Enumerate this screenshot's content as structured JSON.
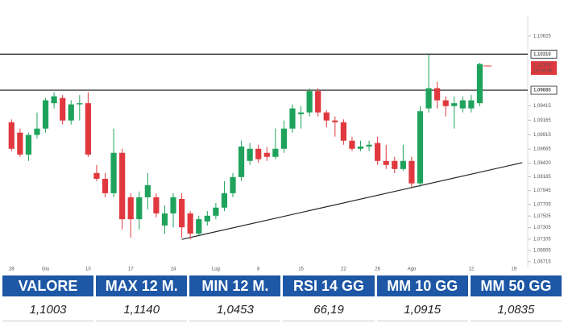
{
  "chart_data": {
    "type": "candlestick",
    "categories": [
      "28",
      null,
      null,
      null,
      "Giu",
      null,
      null,
      null,
      null,
      "10",
      null,
      null,
      null,
      null,
      "17",
      null,
      null,
      null,
      null,
      "24",
      null,
      null,
      null,
      null,
      "Lug",
      null,
      null,
      null,
      null,
      "8",
      null,
      null,
      null,
      null,
      "15",
      null,
      null,
      null,
      null,
      "22",
      null,
      null,
      null,
      "26",
      null,
      null,
      null,
      "Ago",
      null,
      null,
      null,
      null,
      null,
      null,
      "12",
      null,
      null,
      null,
      null,
      "19"
    ],
    "open": [
      1.0913,
      1.0895,
      1.0857,
      1.0891,
      1.0902,
      1.0946,
      1.0955,
      1.0916,
      1.0944,
      1.0946,
      1.0825,
      1.0815,
      1.079,
      1.086,
      1.0783,
      1.0745,
      1.0783,
      1.0783,
      1.0734,
      1.0755,
      1.078,
      1.0755,
      1.072,
      1.0741,
      1.0751,
      1.0765,
      1.079,
      1.0818,
      1.0846,
      1.0867,
      1.086,
      1.0853,
      1.0867,
      1.0902,
      1.0927,
      1.093,
      1.0967,
      1.093,
      1.0916,
      1.0913,
      1.0881,
      1.0867,
      1.0871,
      1.0877,
      1.0846,
      1.0846,
      1.0832,
      1.0846,
      1.0807,
      1.0937,
      1.0972,
      1.0951,
      1.0941,
      1.0937,
      1.0937,
      1.0946,
      null,
      null,
      null,
      null
    ],
    "high": [
      1.0918,
      1.0902,
      1.0895,
      1.093,
      1.0955,
      1.0965,
      1.096,
      1.0951,
      1.096,
      1.0965,
      1.0839,
      1.0825,
      1.0902,
      1.0867,
      1.079,
      1.0793,
      1.0825,
      1.079,
      1.0769,
      1.079,
      1.079,
      1.0759,
      1.0751,
      1.0759,
      1.0773,
      1.0811,
      1.0825,
      1.0881,
      1.0877,
      1.0874,
      1.087,
      1.0902,
      1.0916,
      1.0944,
      1.0941,
      1.0972,
      1.0972,
      1.0934,
      1.0923,
      1.0918,
      1.0888,
      1.0881,
      1.0881,
      1.0888,
      1.0874,
      1.0853,
      1.0874,
      1.0853,
      1.0941,
      1.103,
      1.0983,
      1.0958,
      1.0958,
      1.0958,
      1.096,
      1.1016,
      null,
      null,
      null,
      null
    ],
    "low": [
      1.0863,
      1.0853,
      1.0846,
      1.0885,
      1.0895,
      1.0937,
      1.0909,
      1.0909,
      1.0916,
      1.0853,
      1.0811,
      1.0783,
      1.0783,
      1.0727,
      1.0713,
      1.0727,
      1.0762,
      1.0748,
      1.072,
      1.0731,
      1.0713,
      1.071,
      1.0717,
      1.0734,
      1.0745,
      1.0759,
      1.0783,
      1.0811,
      1.0839,
      1.0843,
      1.0846,
      1.0849,
      1.086,
      1.0895,
      1.0902,
      1.0923,
      1.0923,
      1.0904,
      1.0888,
      1.0874,
      1.0863,
      1.0863,
      1.0863,
      1.0839,
      1.0832,
      1.0825,
      1.0829,
      1.0801,
      1.0801,
      1.093,
      1.0937,
      1.0923,
      1.0902,
      1.093,
      1.093,
      1.0941,
      null,
      null,
      null,
      null
    ],
    "close": [
      1.0867,
      1.0857,
      1.0891,
      1.0902,
      1.0951,
      1.0958,
      1.0916,
      1.0944,
      1.0946,
      1.0857,
      1.0815,
      1.079,
      1.086,
      1.0745,
      1.0745,
      1.0783,
      1.0804,
      1.0755,
      1.0755,
      1.0783,
      1.0731,
      1.072,
      1.0745,
      1.0751,
      1.0765,
      1.079,
      1.0818,
      1.0871,
      1.0867,
      1.0849,
      1.0853,
      1.0867,
      1.0902,
      1.0937,
      1.093,
      1.0967,
      1.093,
      1.0916,
      1.0913,
      1.0881,
      1.0867,
      1.0871,
      1.0874,
      1.0846,
      1.0839,
      1.0832,
      1.0846,
      1.0807,
      1.0932,
      1.0972,
      1.0951,
      1.0941,
      1.0946,
      1.0951,
      1.0951,
      1.1014,
      null,
      null,
      null,
      null
    ],
    "up_color": "#1fa35c",
    "down_color": "#e0383e",
    "ylim": [
      1.0667,
      1.1083
    ],
    "yticks": [
      {
        "value": 1.10625,
        "label": "1,10625"
      },
      {
        "value": 1.09415,
        "label": "1,09415"
      },
      {
        "value": 1.09165,
        "label": "1,09165"
      },
      {
        "value": 1.08915,
        "label": "1,08915"
      },
      {
        "value": 1.08665,
        "label": "1,08665"
      },
      {
        "value": 1.0842,
        "label": "1,08420"
      },
      {
        "value": 1.08185,
        "label": "1,08185"
      },
      {
        "value": 1.07945,
        "label": "1,07945"
      },
      {
        "value": 1.07705,
        "label": "1,07705"
      },
      {
        "value": 1.07505,
        "label": "1,07505"
      },
      {
        "value": 1.07305,
        "label": "1,07305"
      },
      {
        "value": 1.07105,
        "label": "1,07105"
      },
      {
        "value": 1.06905,
        "label": "1,06905"
      },
      {
        "value": 1.06715,
        "label": "1,06715"
      }
    ],
    "levels": [
      {
        "value": 1.1031,
        "label": "1,10310"
      },
      {
        "value": 1.09685,
        "label": "1,09685"
      }
    ],
    "last_price": {
      "value": 1.10105,
      "label": "1,10105",
      "time": "15:59:56"
    },
    "trendline": {
      "x": [
        20,
        60
      ],
      "y": [
        1.071,
        1.0843
      ]
    }
  },
  "table": {
    "headers": [
      "VALORE",
      "MAX 12 M.",
      "MIN 12 M.",
      "RSI 14 GG",
      "MM 10 GG",
      "MM 50 GG"
    ],
    "rows": [
      [
        "1,1003",
        "1,1140",
        "1,0453",
        "66,19",
        "1,0915",
        "1,0835"
      ]
    ]
  }
}
